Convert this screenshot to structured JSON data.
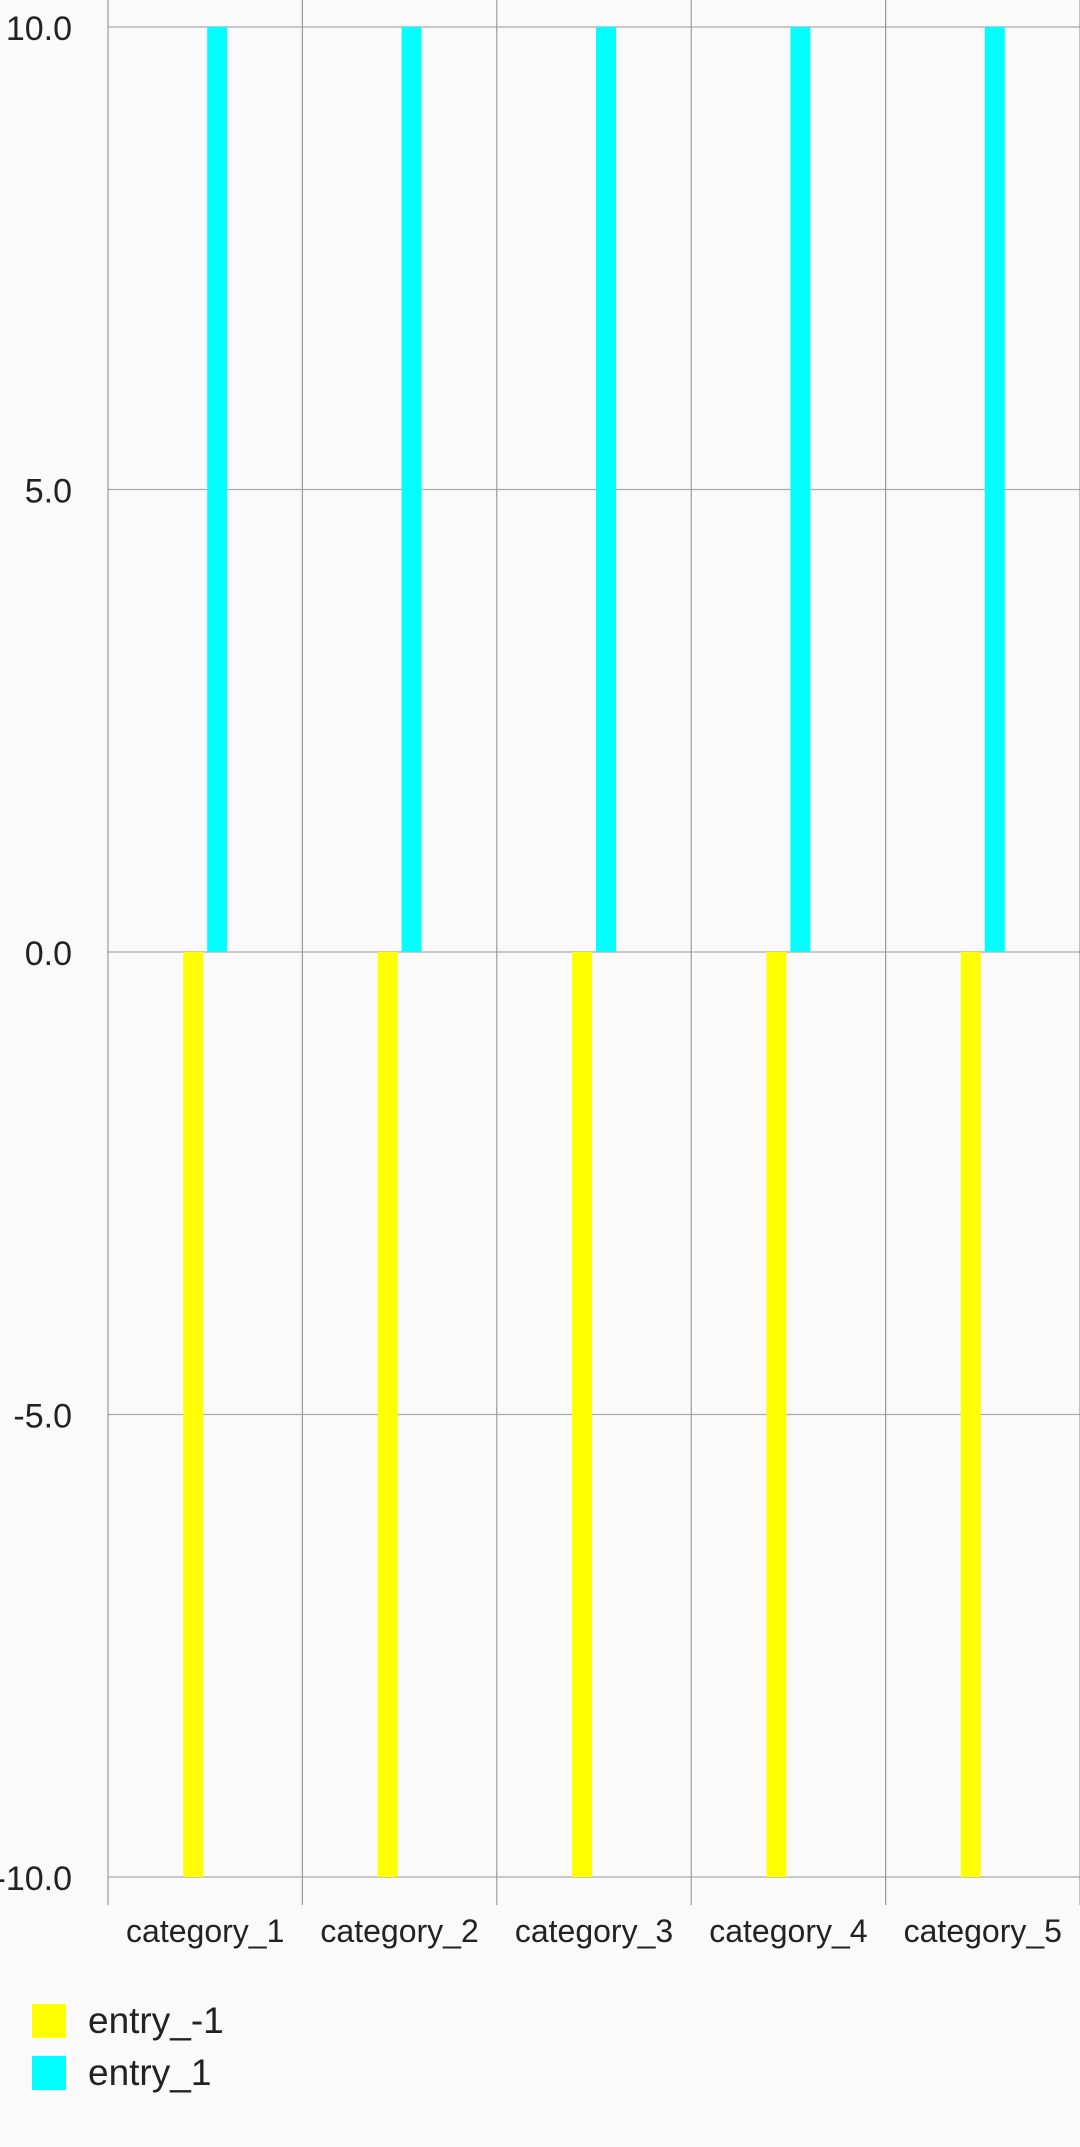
{
  "chart_data": {
    "type": "bar",
    "categories": [
      "category_1",
      "category_2",
      "category_3",
      "category_4",
      "category_5"
    ],
    "series": [
      {
        "name": "entry_-1",
        "color": "#ffff00",
        "values": [
          -10,
          -10,
          -10,
          -10,
          -10
        ]
      },
      {
        "name": "entry_1",
        "color": "#00ffff",
        "values": [
          10,
          10,
          10,
          10,
          10
        ]
      }
    ],
    "y_ticks": [
      "-10.0",
      "-5.0",
      "0.0",
      "5.0",
      "10.0"
    ],
    "ylim": [
      -10,
      10
    ],
    "grid": true,
    "legend_position": "bottom-left"
  }
}
